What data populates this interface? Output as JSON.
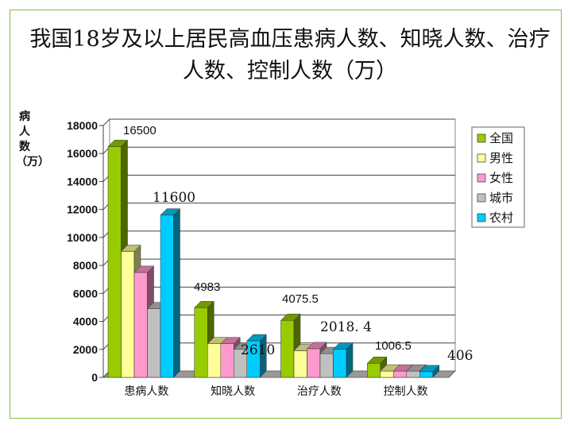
{
  "chart_data": {
    "type": "bar",
    "title": "我国18岁及以上居民高血压患病人数、知晓人数、治疗人数、控制人数（万）",
    "ylabel": "病人数（万）",
    "xlabel": "",
    "categories": [
      "患病人数",
      "知晓人数",
      "治疗人数",
      "控制人数"
    ],
    "series": [
      {
        "name": "全国",
        "color": "#99cc00",
        "values": [
          16500,
          4983,
          4075.5,
          1006.5
        ]
      },
      {
        "name": "男性",
        "color": "#ffff99",
        "values": [
          9000,
          2400,
          1900,
          450
        ]
      },
      {
        "name": "女性",
        "color": "#ff99cc",
        "values": [
          7500,
          2400,
          2050,
          450
        ]
      },
      {
        "name": "城市",
        "color": "#c0c0c0",
        "values": [
          4900,
          2000,
          1700,
          450
        ]
      },
      {
        "name": "农村",
        "color": "#00ccff",
        "values": [
          11600,
          2610,
          2018.4,
          406
        ]
      }
    ],
    "ylim": [
      0,
      18000
    ],
    "yticks": [
      "0",
      "2000",
      "4000",
      "6000",
      "8000",
      "10000",
      "12000",
      "14000",
      "16000",
      "18000"
    ],
    "data_labels": [
      {
        "text": "16500",
        "category": 0,
        "value": 16500
      },
      {
        "text": "11600",
        "category": 0,
        "value": 11600
      },
      {
        "text": "4983",
        "category": 1,
        "value": 4983
      },
      {
        "text": "2610",
        "category": 1,
        "value": 2610
      },
      {
        "text": "4075.5",
        "category": 2,
        "value": 4075.5
      },
      {
        "text": "2018. 4",
        "category": 2,
        "value": 2018.4
      },
      {
        "text": "1006.5",
        "category": 3,
        "value": 1006.5
      },
      {
        "text": "406",
        "category": 3,
        "value": 406
      }
    ],
    "grid": true,
    "legend": "right"
  }
}
